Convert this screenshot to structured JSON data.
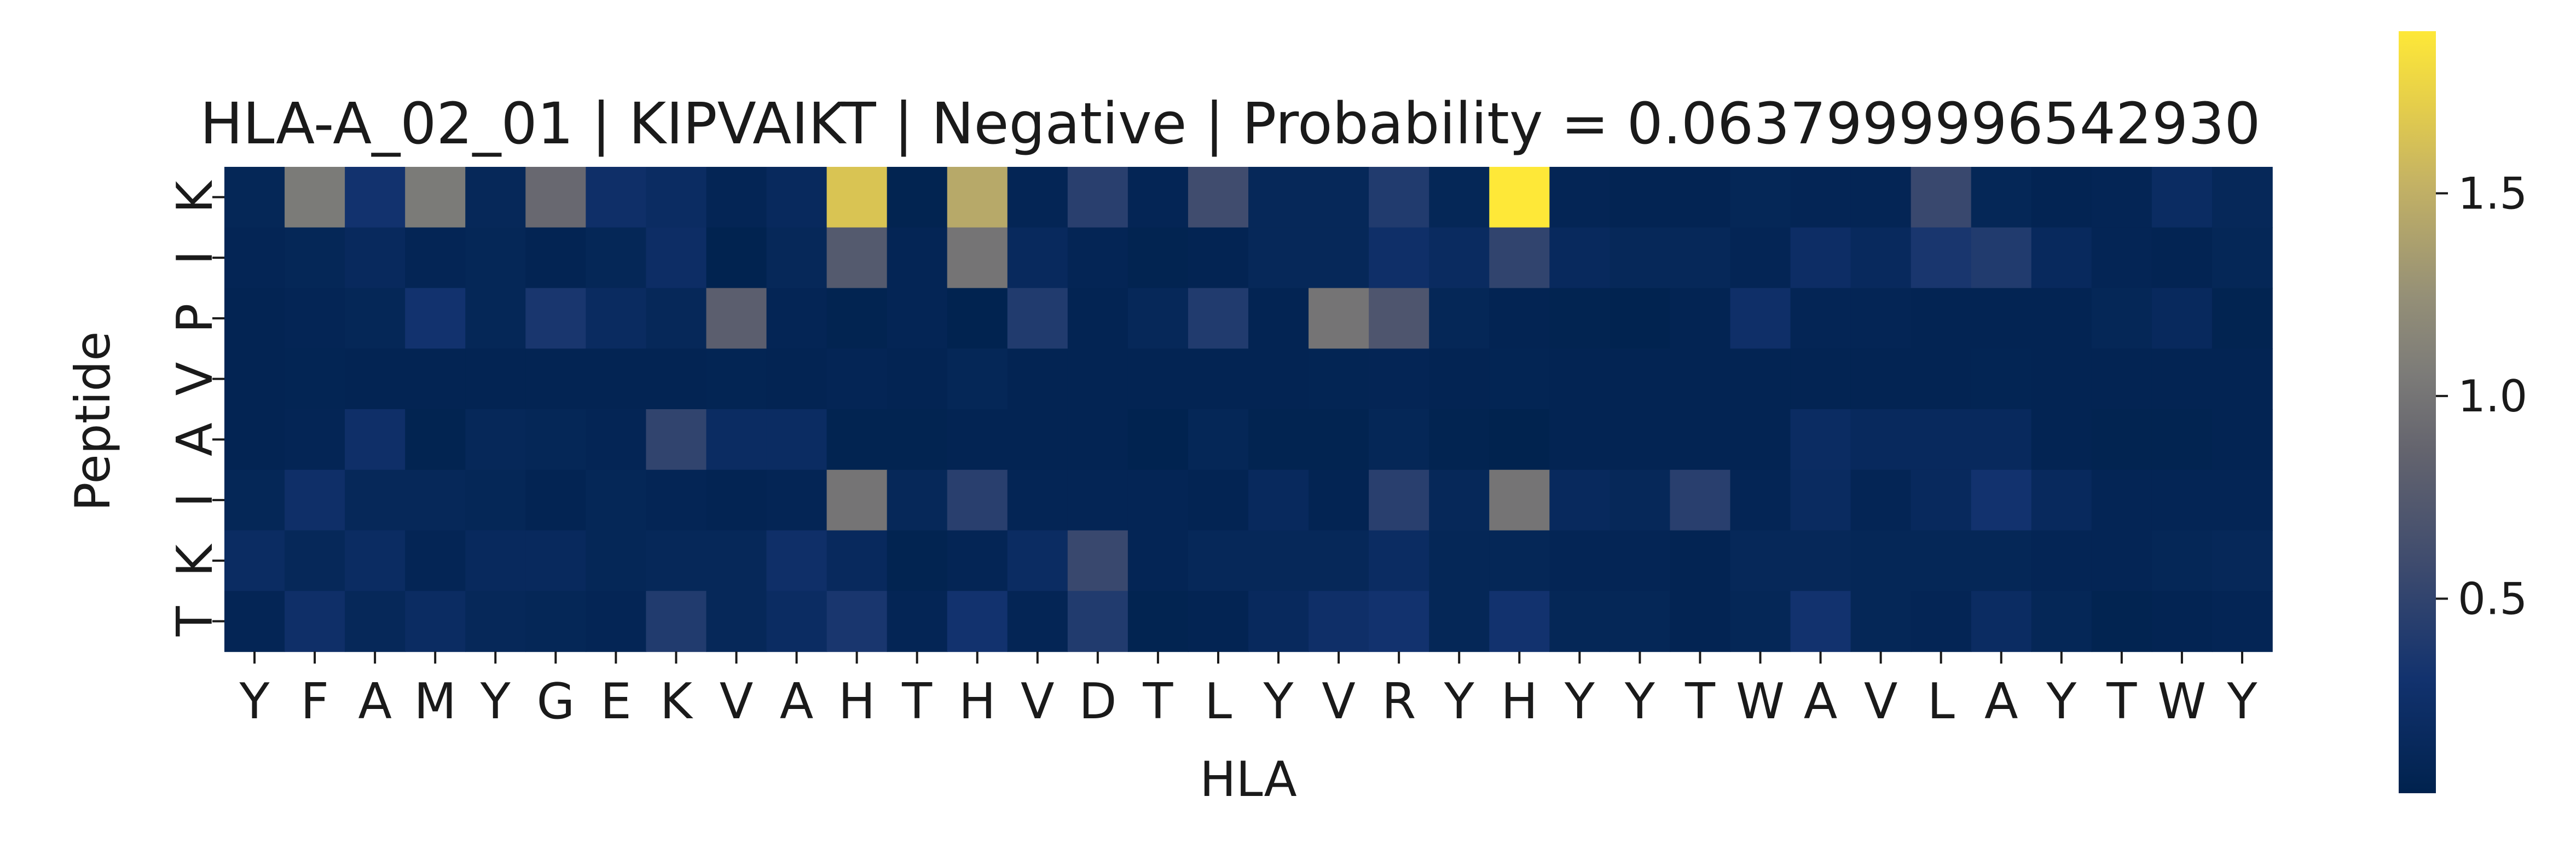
{
  "chart_data": {
    "type": "heatmap",
    "title": "HLA-A_02_01 | KIPVAIKT | Negative | Probability = 0.0637999996542930",
    "xlabel": "HLA",
    "ylabel": "Peptide",
    "x_categories": [
      "Y",
      "F",
      "A",
      "M",
      "Y",
      "G",
      "E",
      "K",
      "V",
      "A",
      "H",
      "T",
      "H",
      "V",
      "D",
      "T",
      "L",
      "Y",
      "V",
      "R",
      "Y",
      "H",
      "Y",
      "Y",
      "T",
      "W",
      "A",
      "V",
      "L",
      "A",
      "Y",
      "T",
      "W",
      "Y"
    ],
    "y_categories": [
      "K",
      "I",
      "P",
      "V",
      "A",
      "I",
      "K",
      "T"
    ],
    "colormap": "cividis",
    "value_range": [
      0.02,
      1.9
    ],
    "colorbar_ticks": [
      0.5,
      1.0,
      1.5
    ],
    "colorbar_tick_labels": [
      "0.5",
      "1.0",
      "1.5"
    ],
    "values": [
      [
        0.1,
        1.05,
        0.3,
        1.05,
        0.12,
        0.9,
        0.25,
        0.2,
        0.08,
        0.15,
        1.65,
        0.05,
        1.45,
        0.08,
        0.45,
        0.08,
        0.6,
        0.12,
        0.12,
        0.4,
        0.1,
        1.9,
        0.08,
        0.06,
        0.06,
        0.1,
        0.08,
        0.08,
        0.55,
        0.1,
        0.06,
        0.08,
        0.2,
        0.12
      ],
      [
        0.08,
        0.1,
        0.15,
        0.08,
        0.1,
        0.06,
        0.1,
        0.22,
        0.04,
        0.12,
        0.75,
        0.08,
        1.0,
        0.15,
        0.08,
        0.05,
        0.06,
        0.12,
        0.12,
        0.25,
        0.18,
        0.5,
        0.15,
        0.12,
        0.12,
        0.08,
        0.22,
        0.15,
        0.35,
        0.4,
        0.15,
        0.08,
        0.06,
        0.1
      ],
      [
        0.06,
        0.08,
        0.1,
        0.3,
        0.1,
        0.35,
        0.18,
        0.12,
        0.8,
        0.08,
        0.05,
        0.08,
        0.04,
        0.4,
        0.06,
        0.12,
        0.4,
        0.06,
        1.0,
        0.7,
        0.1,
        0.06,
        0.05,
        0.04,
        0.06,
        0.25,
        0.08,
        0.08,
        0.06,
        0.06,
        0.06,
        0.1,
        0.15,
        0.05
      ],
      [
        0.06,
        0.07,
        0.06,
        0.06,
        0.06,
        0.06,
        0.06,
        0.06,
        0.07,
        0.06,
        0.08,
        0.06,
        0.1,
        0.06,
        0.06,
        0.06,
        0.06,
        0.06,
        0.07,
        0.08,
        0.06,
        0.07,
        0.06,
        0.06,
        0.06,
        0.06,
        0.06,
        0.06,
        0.06,
        0.07,
        0.06,
        0.06,
        0.06,
        0.06
      ],
      [
        0.06,
        0.08,
        0.25,
        0.05,
        0.12,
        0.1,
        0.08,
        0.5,
        0.2,
        0.2,
        0.05,
        0.05,
        0.06,
        0.06,
        0.06,
        0.04,
        0.1,
        0.05,
        0.05,
        0.1,
        0.05,
        0.03,
        0.06,
        0.06,
        0.06,
        0.06,
        0.2,
        0.15,
        0.15,
        0.15,
        0.06,
        0.05,
        0.05,
        0.06
      ],
      [
        0.1,
        0.25,
        0.12,
        0.12,
        0.1,
        0.06,
        0.1,
        0.08,
        0.06,
        0.08,
        1.0,
        0.12,
        0.45,
        0.08,
        0.08,
        0.08,
        0.06,
        0.15,
        0.06,
        0.45,
        0.12,
        1.0,
        0.15,
        0.12,
        0.45,
        0.08,
        0.18,
        0.08,
        0.15,
        0.3,
        0.15,
        0.08,
        0.08,
        0.08
      ],
      [
        0.2,
        0.12,
        0.2,
        0.08,
        0.15,
        0.15,
        0.1,
        0.12,
        0.12,
        0.25,
        0.15,
        0.05,
        0.08,
        0.2,
        0.55,
        0.08,
        0.12,
        0.12,
        0.12,
        0.2,
        0.1,
        0.1,
        0.08,
        0.08,
        0.06,
        0.12,
        0.12,
        0.1,
        0.1,
        0.1,
        0.08,
        0.08,
        0.1,
        0.12
      ],
      [
        0.08,
        0.25,
        0.12,
        0.2,
        0.12,
        0.1,
        0.08,
        0.4,
        0.12,
        0.2,
        0.35,
        0.08,
        0.3,
        0.08,
        0.4,
        0.05,
        0.06,
        0.15,
        0.25,
        0.3,
        0.1,
        0.3,
        0.1,
        0.1,
        0.06,
        0.1,
        0.3,
        0.1,
        0.08,
        0.2,
        0.1,
        0.05,
        0.06,
        0.08
      ]
    ]
  }
}
